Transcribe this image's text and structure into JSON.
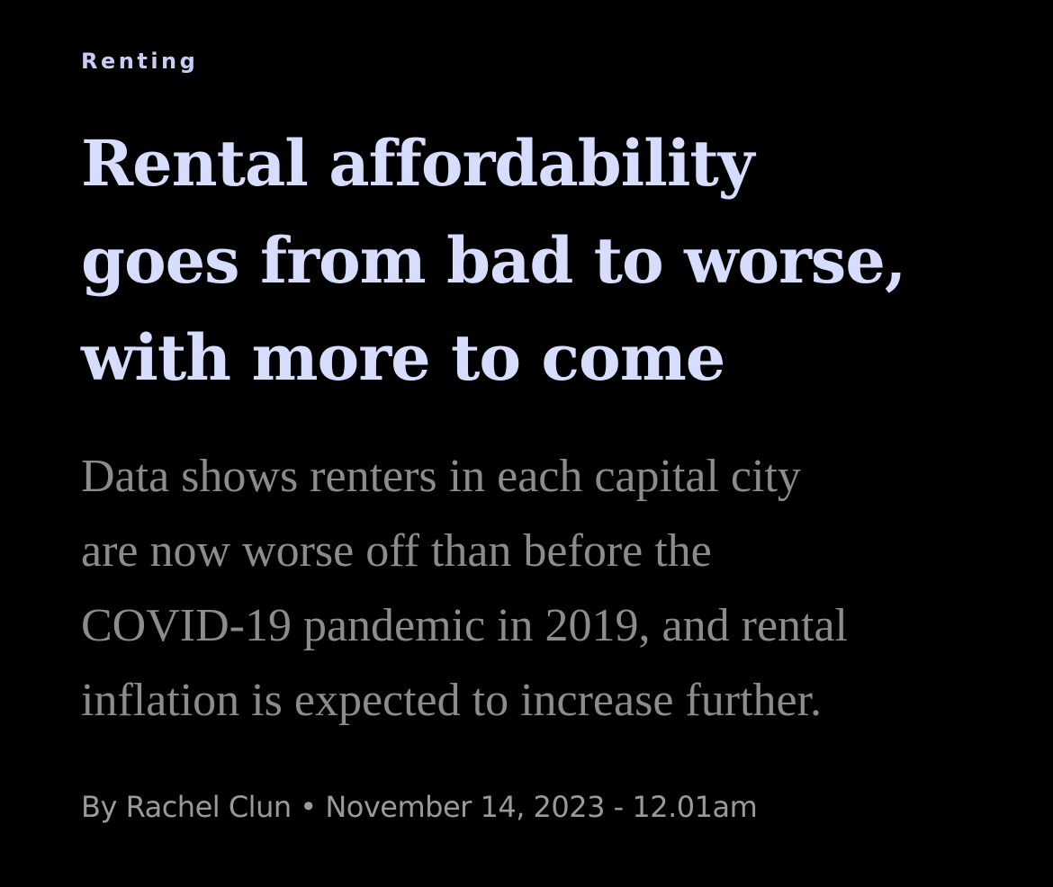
{
  "section": "Renting",
  "headline": {
    "lines": [
      "Rental affordability",
      "goes from bad to worse,",
      "with more to come"
    ]
  },
  "standfirst": {
    "lines": [
      "Data shows renters in each capital city",
      "are now worse off than before the",
      "COVID-19 pandemic in 2019, and rental",
      "inflation is expected to increase further."
    ]
  },
  "byline": {
    "author": "By Rachel Clun",
    "separator": "•",
    "date": "November 14, 2023 - 12.01am"
  }
}
